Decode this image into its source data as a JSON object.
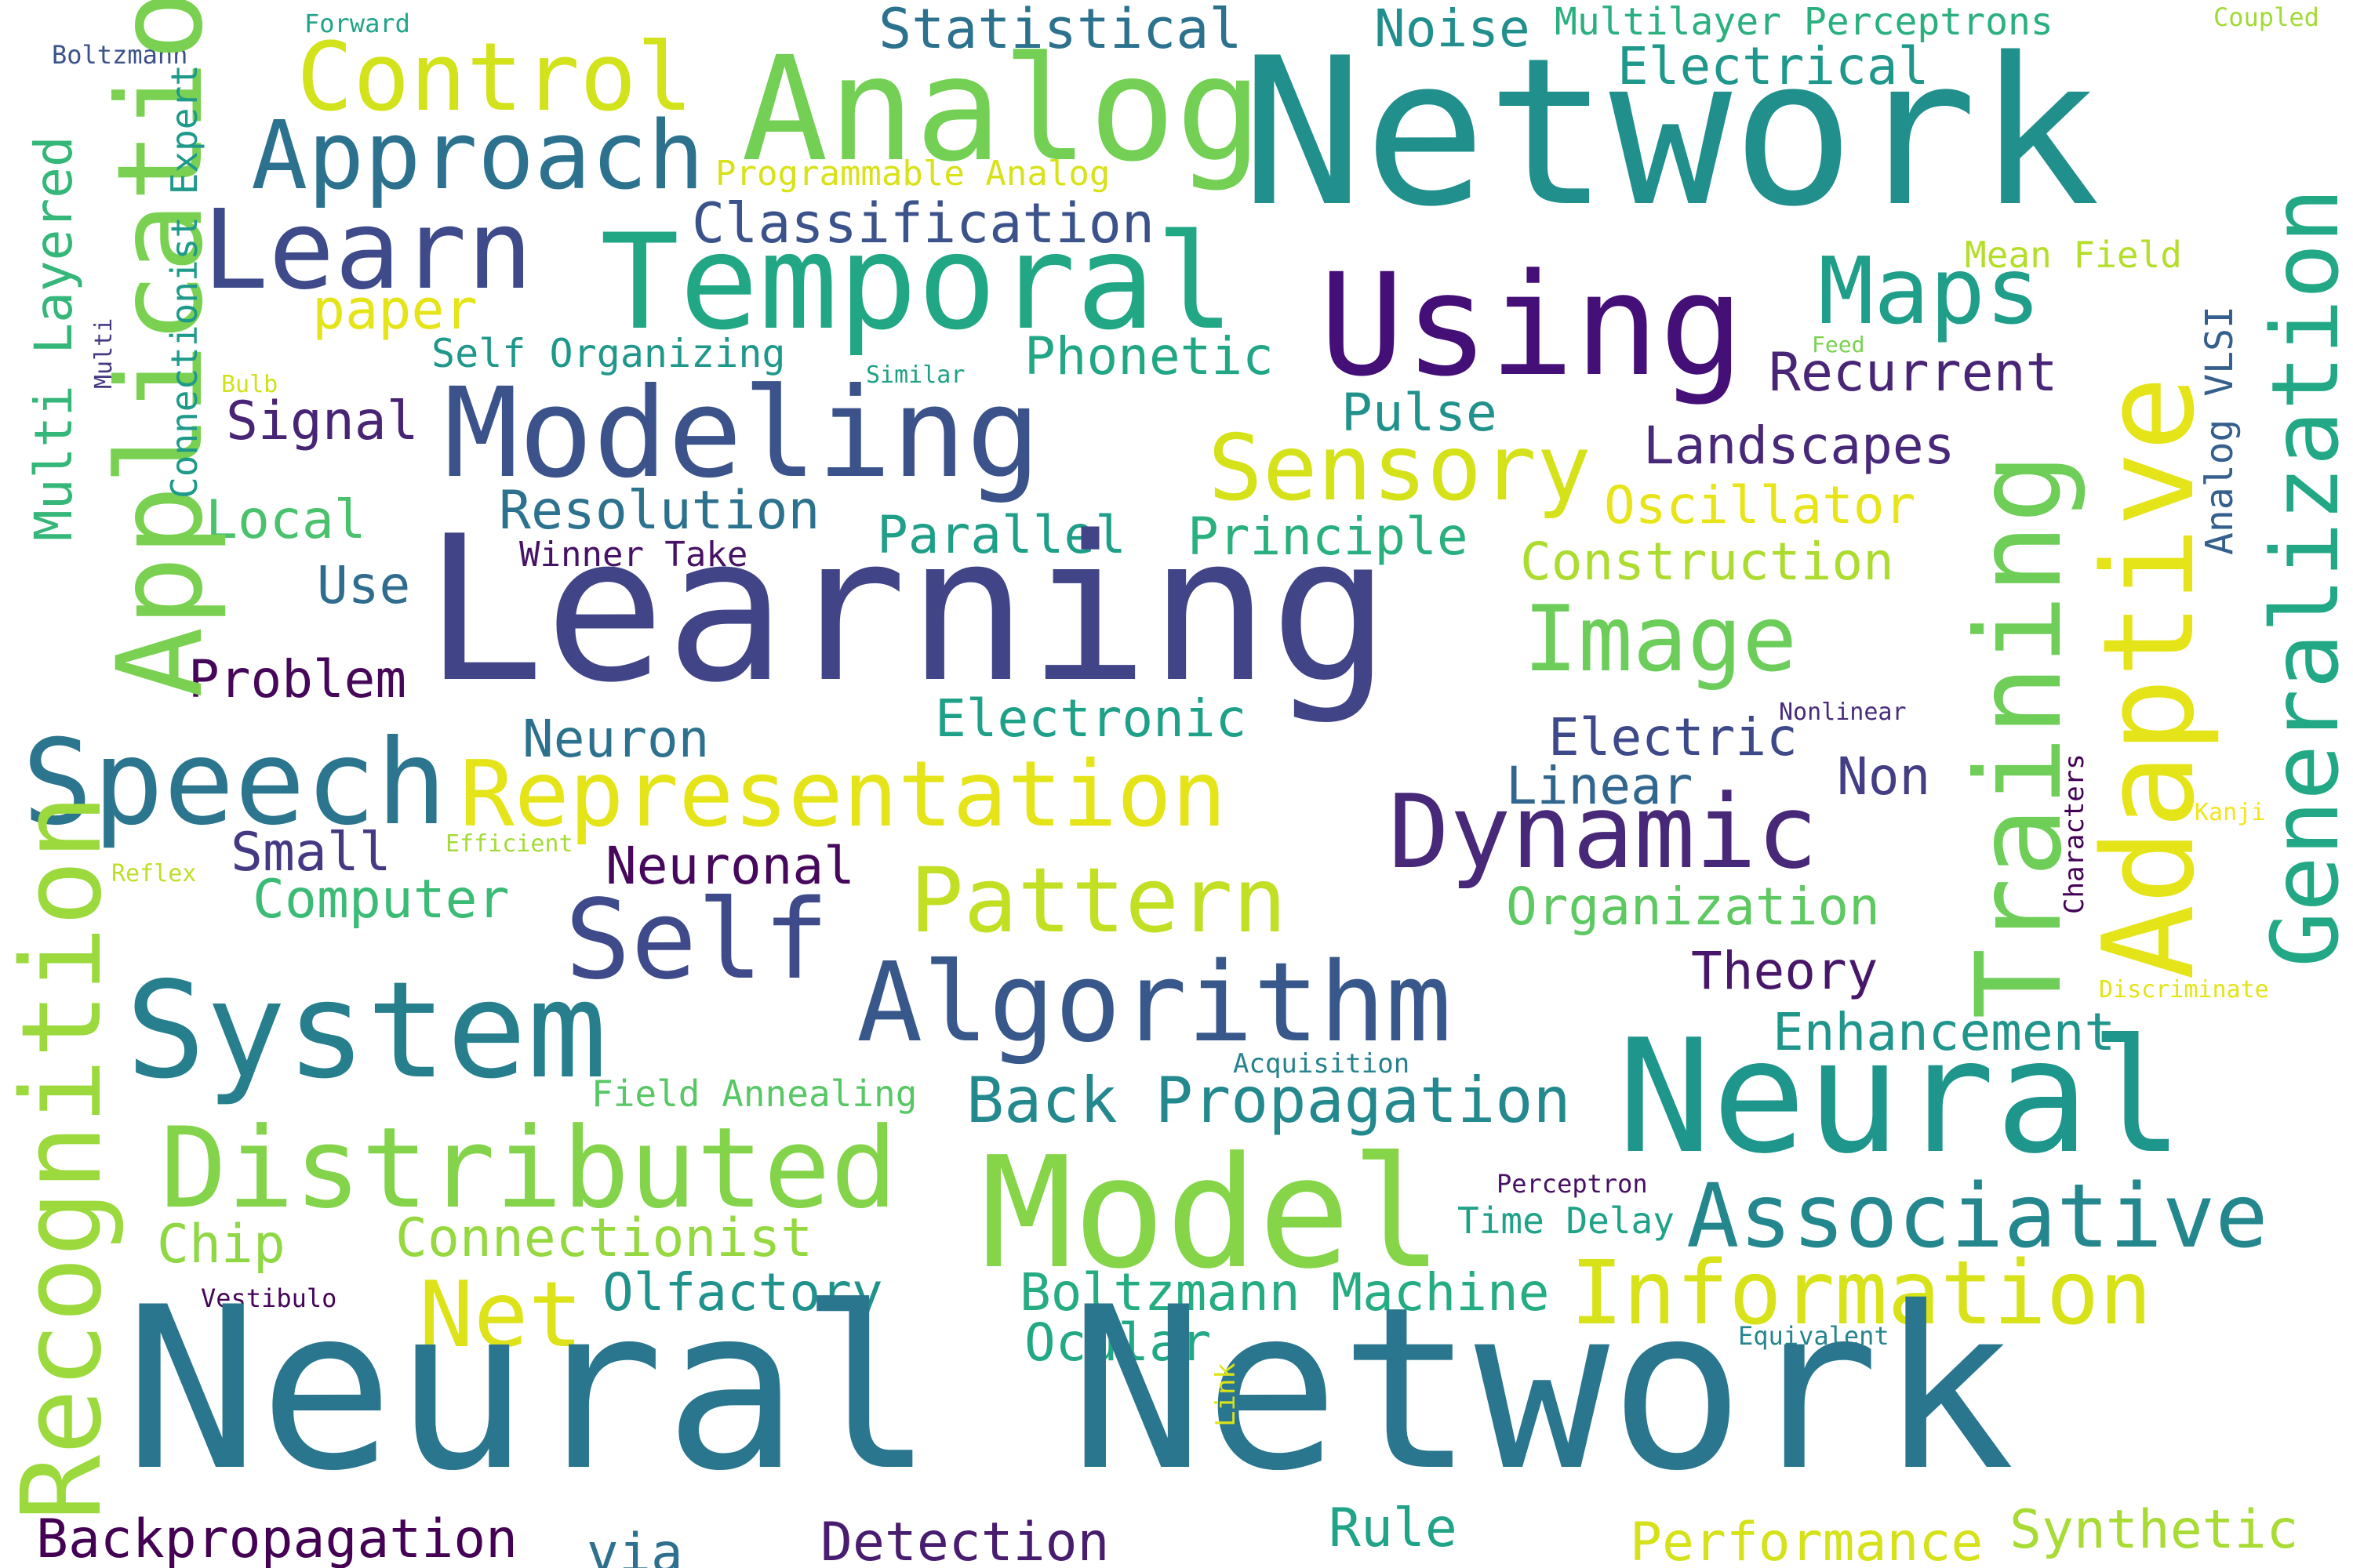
{
  "words": [
    {
      "text": "Network",
      "color": "#21908d"
    },
    {
      "text": "Analog",
      "color": "#74d055"
    },
    {
      "text": "Control",
      "color": "#d2e21b"
    },
    {
      "text": "Statistical",
      "color": "#2c728e"
    },
    {
      "text": "Noise",
      "color": "#218f8d"
    },
    {
      "text": "Multilayer Perceptrons",
      "color": "#2ab07f"
    },
    {
      "text": "Coupled",
      "color": "#a2da37"
    },
    {
      "text": "Electrical",
      "color": "#1f978b"
    },
    {
      "text": "Forward",
      "color": "#20a386"
    },
    {
      "text": "Boltzmann",
      "color": "#3b528b"
    },
    {
      "text": "Approach",
      "color": "#2c728e"
    },
    {
      "text": "Programmable Analog",
      "color": "#d8e219"
    },
    {
      "text": "Learn",
      "color": "#3e4a89"
    },
    {
      "text": "Temporal",
      "color": "#22a785"
    },
    {
      "text": "Classification",
      "color": "#3b528b"
    },
    {
      "text": "Using",
      "color": "#440f76"
    },
    {
      "text": "Maps",
      "color": "#1f9e89"
    },
    {
      "text": "Mean Field",
      "color": "#b5de2b"
    },
    {
      "text": "paper",
      "color": "#e5e419"
    },
    {
      "text": "Self Organizing",
      "color": "#1f988b"
    },
    {
      "text": "Phonetic",
      "color": "#22a785"
    },
    {
      "text": "Recurrent",
      "color": "#482576"
    },
    {
      "text": "Feed",
      "color": "#7ad151"
    },
    {
      "text": "Similar",
      "color": "#1fa187"
    },
    {
      "text": "Bulb",
      "color": "#d0e11c"
    },
    {
      "text": "Modeling",
      "color": "#3b528b"
    },
    {
      "text": "Signal",
      "color": "#482475"
    },
    {
      "text": "Pulse",
      "color": "#21918c"
    },
    {
      "text": "Sensory",
      "color": "#d5e21a"
    },
    {
      "text": "Landscapes",
      "color": "#482878"
    },
    {
      "text": "Local",
      "color": "#4ac16d"
    },
    {
      "text": "Resolution",
      "color": "#2c728e"
    },
    {
      "text": "Oscillator",
      "color": "#e7e419"
    },
    {
      "text": "Parallel",
      "color": "#1f9f88"
    },
    {
      "text": "Principle",
      "color": "#2ab07f"
    },
    {
      "text": "Winner Take",
      "color": "#471365"
    },
    {
      "text": "Construction",
      "color": "#addc30"
    },
    {
      "text": "Learning",
      "color": "#414487"
    },
    {
      "text": "Use",
      "color": "#2f6c8e"
    },
    {
      "text": "Image",
      "color": "#6ccd5a"
    },
    {
      "text": "Problem",
      "color": "#46075a"
    },
    {
      "text": "Electronic",
      "color": "#1fa088"
    },
    {
      "text": "Nonlinear",
      "color": "#472c7a"
    },
    {
      "text": "Neuron",
      "color": "#2c728e"
    },
    {
      "text": "Electric",
      "color": "#3e4989"
    },
    {
      "text": "Speech",
      "color": "#2b758e"
    },
    {
      "text": "Representation",
      "color": "#e4e419"
    },
    {
      "text": "Linear",
      "color": "#31668e"
    },
    {
      "text": "Non",
      "color": "#433e85"
    },
    {
      "text": "Dynamic",
      "color": "#482878"
    },
    {
      "text": "Kanji",
      "color": "#f1e51d"
    },
    {
      "text": "Small",
      "color": "#443983"
    },
    {
      "text": "Efficient",
      "color": "#a5db36"
    },
    {
      "text": "Neuronal",
      "color": "#46085c"
    },
    {
      "text": "Reflex",
      "color": "#bddf26"
    },
    {
      "text": "Computer",
      "color": "#3bbb75"
    },
    {
      "text": "Pattern",
      "color": "#c2df23"
    },
    {
      "text": "Organization",
      "color": "#5ec962"
    },
    {
      "text": "Self",
      "color": "#3e4a89"
    },
    {
      "text": "Algorithm",
      "color": "#38588c"
    },
    {
      "text": "Theory",
      "color": "#481769"
    },
    {
      "text": "System",
      "color": "#277f8e"
    },
    {
      "text": "Discriminate",
      "color": "#e2e418"
    },
    {
      "text": "Enhancement",
      "color": "#1f958b"
    },
    {
      "text": "Acquisition",
      "color": "#26818e"
    },
    {
      "text": "Neural",
      "color": "#1f968b"
    },
    {
      "text": "Field Annealing",
      "color": "#58c765"
    },
    {
      "text": "Back Propagation",
      "color": "#23898e"
    },
    {
      "text": "Distributed",
      "color": "#84d44b"
    },
    {
      "text": "Model",
      "color": "#86d549"
    },
    {
      "text": "Perceptron",
      "color": "#471063"
    },
    {
      "text": "Time Delay",
      "color": "#1fa287"
    },
    {
      "text": "Associative",
      "color": "#24878e"
    },
    {
      "text": "Chip",
      "color": "#8fd744"
    },
    {
      "text": "Connectionist",
      "color": "#95d840"
    },
    {
      "text": "Vestibulo",
      "color": "#450559"
    },
    {
      "text": "Net",
      "color": "#dde318"
    },
    {
      "text": "Olfactory",
      "color": "#20928c"
    },
    {
      "text": "Boltzmann Machine",
      "color": "#25ac82"
    },
    {
      "text": "Information",
      "color": "#d8e219"
    },
    {
      "text": "Ocular",
      "color": "#22a884"
    },
    {
      "text": "Equivalent",
      "color": "#25848e"
    },
    {
      "text": "Neural Network",
      "color": "#2a768e"
    },
    {
      "text": "Backpropagation",
      "color": "#440154"
    },
    {
      "text": "via",
      "color": "#2d718e"
    },
    {
      "text": "Detection",
      "color": "#481c6e"
    },
    {
      "text": "Rule",
      "color": "#20a386"
    },
    {
      "text": "Performance",
      "color": "#d5e21a"
    },
    {
      "text": "Synthetic",
      "color": "#a8db34"
    },
    {
      "text": "Application",
      "color": "#7ad151"
    },
    {
      "text": "Multi Layered",
      "color": "#35b779"
    },
    {
      "text": "Connectionist Expert",
      "color": "#1f9a8a"
    },
    {
      "text": "Multi",
      "color": "#453781"
    },
    {
      "text": "Recognition",
      "color": "#9bd93c"
    },
    {
      "text": "Training",
      "color": "#6ece58"
    },
    {
      "text": "Adaptive",
      "color": "#e5e419"
    },
    {
      "text": "Generalization",
      "color": "#22a884"
    },
    {
      "text": "Analog VLSI",
      "color": "#355f8d"
    },
    {
      "text": "Characters",
      "color": "#440256"
    },
    {
      "text": "Link",
      "color": "#dde318"
    }
  ]
}
